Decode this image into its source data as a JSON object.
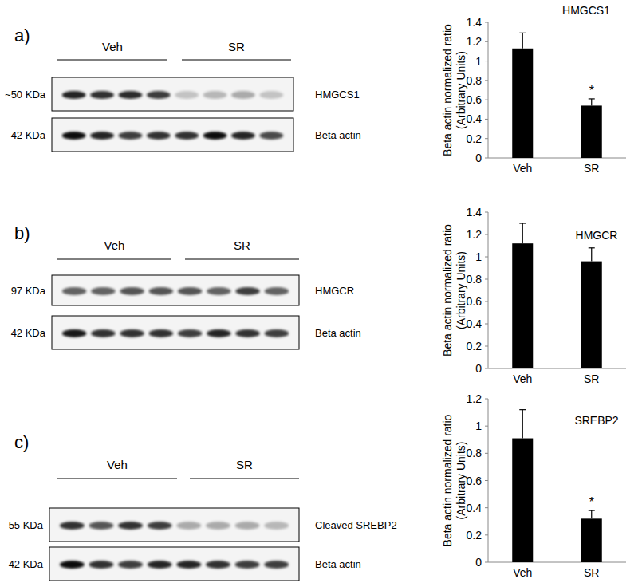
{
  "panels": [
    {
      "label": "a)",
      "blot": {
        "groups": [
          "Veh",
          "SR"
        ],
        "rows": [
          {
            "size": "~50 KDa",
            "protein": "HMGCS1",
            "intensity": [
              0.85,
              0.8,
              0.82,
              0.75,
              0.2,
              0.25,
              0.3,
              0.2
            ]
          },
          {
            "size": "42 KDa",
            "protein": "Beta actin",
            "intensity": [
              0.95,
              0.85,
              0.75,
              0.8,
              0.8,
              0.95,
              0.85,
              0.7
            ]
          }
        ]
      }
    },
    {
      "label": "b)",
      "blot": {
        "groups": [
          "Veh",
          "SR"
        ],
        "rows": [
          {
            "size": "97 KDa",
            "protein": "HMGCR",
            "intensity": [
              0.6,
              0.6,
              0.65,
              0.65,
              0.65,
              0.6,
              0.75,
              0.6
            ]
          },
          {
            "size": "42 KDa",
            "protein": "Beta actin",
            "intensity": [
              0.9,
              0.8,
              0.8,
              0.8,
              0.75,
              0.85,
              0.8,
              0.75
            ]
          }
        ]
      }
    },
    {
      "label": "c)",
      "blot": {
        "groups": [
          "Veh",
          "SR"
        ],
        "rows": [
          {
            "size": "55 KDa",
            "protein": "Cleaved SREBP2",
            "intensity": [
              0.8,
              0.65,
              0.8,
              0.75,
              0.3,
              0.3,
              0.3,
              0.25
            ]
          },
          {
            "size": "42 KDa",
            "protein": "Beta actin",
            "intensity": [
              0.95,
              0.8,
              0.75,
              0.85,
              0.85,
              0.8,
              0.75,
              0.75
            ]
          }
        ]
      }
    }
  ],
  "chart_data": [
    {
      "type": "bar",
      "title": "HMGCS1",
      "y_label": [
        "Beta actin normalized ratio",
        "(Arbitrary Units)"
      ],
      "categories": [
        "Veh",
        "SR"
      ],
      "values": [
        1.13,
        0.54
      ],
      "errors": [
        0.16,
        0.07
      ],
      "color": "#000000",
      "ylim": [
        0,
        1.4
      ],
      "yticks": [
        0,
        0.2,
        0.4,
        0.6,
        0.8,
        1,
        1.2,
        1.4
      ],
      "grid": false,
      "annotations": [
        {
          "text": "*",
          "category": "SR"
        }
      ]
    },
    {
      "type": "bar",
      "title": "HMGCR",
      "y_label": [
        "Beta actin normalized ratio",
        "(Arbitrary Units)"
      ],
      "categories": [
        "Veh",
        "SR"
      ],
      "values": [
        1.12,
        0.96
      ],
      "errors": [
        0.18,
        0.12
      ],
      "color": "#000000",
      "ylim": [
        0,
        1.4
      ],
      "yticks": [
        0,
        0.2,
        0.4,
        0.6,
        0.8,
        1,
        1.2,
        1.4
      ],
      "grid": false
    },
    {
      "type": "bar",
      "title": "SREBP2",
      "y_label": [
        "Beta actin normalized ratio",
        "(Arbitrary Units)"
      ],
      "categories": [
        "Veh",
        "SR"
      ],
      "values": [
        0.91,
        0.32
      ],
      "errors": [
        0.21,
        0.06
      ],
      "color": "#000000",
      "ylim": [
        0,
        1.2
      ],
      "yticks": [
        0,
        0.2,
        0.4,
        0.6,
        0.8,
        1,
        1.2
      ],
      "grid": false,
      "annotations": [
        {
          "text": "*",
          "category": "SR"
        }
      ]
    }
  ]
}
